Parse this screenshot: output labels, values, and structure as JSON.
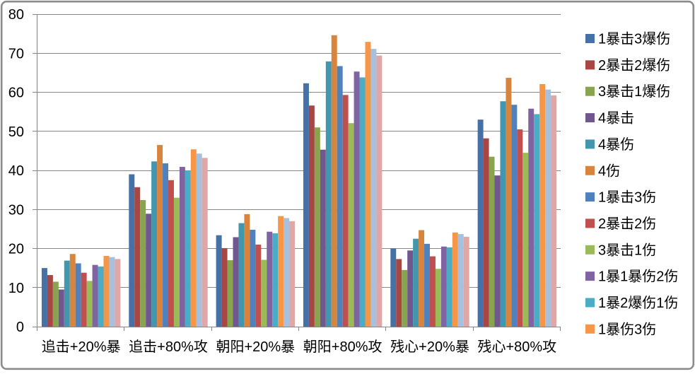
{
  "chart_data": {
    "type": "bar",
    "title": "",
    "xlabel": "",
    "ylabel": "",
    "categories": [
      "追击+20%暴",
      "追击+80%攻",
      "朝阳+20%暴",
      "朝阳+80%攻",
      "残心+20%暴",
      "残心+80%攻"
    ],
    "series": [
      {
        "name": "1暴击3爆伤",
        "color": "#4571A6",
        "in_legend": true,
        "values": [
          15.0,
          39.0,
          23.4,
          62.3,
          20.0,
          53.0
        ]
      },
      {
        "name": "2暴击2爆伤",
        "color": "#A84644",
        "in_legend": true,
        "values": [
          13.2,
          35.7,
          20.1,
          56.6,
          17.3,
          48.2
        ]
      },
      {
        "name": "3暴击1爆伤",
        "color": "#88A44E",
        "in_legend": true,
        "values": [
          11.5,
          32.4,
          17.0,
          51.0,
          14.5,
          43.5
        ]
      },
      {
        "name": "4暴击",
        "color": "#70588E",
        "in_legend": true,
        "values": [
          9.5,
          28.9,
          22.9,
          45.3,
          19.5,
          38.7
        ]
      },
      {
        "name": "4暴伤",
        "color": "#4297AE",
        "in_legend": true,
        "values": [
          16.9,
          42.3,
          26.5,
          67.9,
          22.5,
          57.7
        ]
      },
      {
        "name": "4伤",
        "color": "#D9843D",
        "in_legend": true,
        "values": [
          18.6,
          46.5,
          28.8,
          74.6,
          24.7,
          63.7
        ]
      },
      {
        "name": "1暴击3伤",
        "color": "#4F81BD",
        "in_legend": true,
        "values": [
          16.2,
          41.8,
          24.8,
          66.7,
          21.2,
          56.8
        ]
      },
      {
        "name": "2暴击2伤",
        "color": "#C0504D",
        "in_legend": true,
        "values": [
          13.8,
          37.5,
          21.0,
          59.3,
          18.0,
          50.5
        ]
      },
      {
        "name": "3暴击1伤",
        "color": "#9BBB59",
        "in_legend": true,
        "values": [
          11.7,
          33.0,
          17.1,
          52.1,
          14.8,
          44.5
        ]
      },
      {
        "name": "1暴1暴伤2伤",
        "color": "#8064A2",
        "in_legend": true,
        "values": [
          15.8,
          40.9,
          24.3,
          65.3,
          20.5,
          55.8
        ]
      },
      {
        "name": "1暴2爆伤1伤",
        "color": "#4BACC6",
        "in_legend": true,
        "values": [
          15.4,
          40.0,
          23.9,
          63.8,
          20.3,
          54.4
        ]
      },
      {
        "name": "1暴伤3伤",
        "color": "#F79646",
        "in_legend": true,
        "values": [
          18.1,
          45.4,
          28.3,
          72.9,
          24.1,
          62.1
        ]
      },
      {
        "name": "",
        "color": "#A7C0DE",
        "in_legend": false,
        "values": [
          17.8,
          44.3,
          27.8,
          71.1,
          23.7,
          60.7
        ]
      },
      {
        "name": "",
        "color": "#DFA7A6",
        "in_legend": false,
        "values": [
          17.3,
          43.2,
          27.0,
          69.4,
          23.0,
          59.2
        ]
      }
    ],
    "y_axis": {
      "min": 0,
      "max": 80,
      "tick_step": 10,
      "tick_labels": [
        "0",
        "10",
        "20",
        "30",
        "40",
        "50",
        "60",
        "70",
        "80"
      ]
    },
    "legend_position": "right",
    "grid": true,
    "colors": {
      "background": "#FFFFFF",
      "border": "#8C8C8C",
      "gridline": "#878787",
      "axis": "#878787",
      "text": "#000000"
    }
  }
}
